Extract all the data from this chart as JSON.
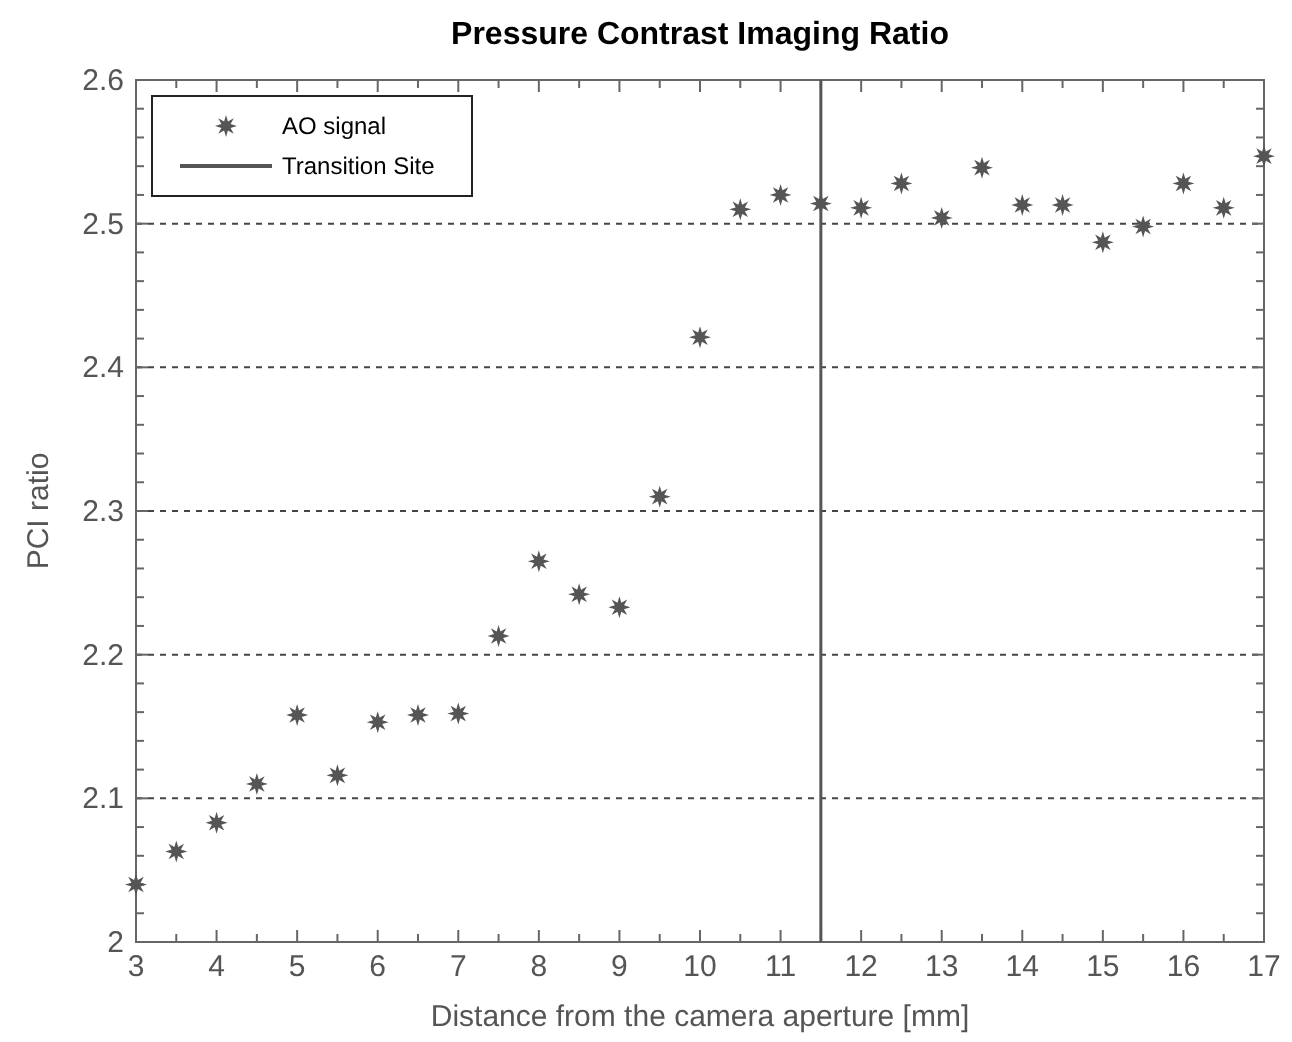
{
  "chart_data": {
    "type": "scatter",
    "title": "Pressure Contrast Imaging Ratio",
    "xlabel": "Distance from the camera aperture [mm]",
    "ylabel": "PCI ratio",
    "x": [
      3,
      3.5,
      4,
      4.5,
      5,
      5.5,
      6,
      6.5,
      7,
      7.5,
      8,
      8.5,
      9,
      9.5,
      10,
      10.5,
      11,
      11.5,
      12,
      12.5,
      13,
      13.5,
      14,
      14.5,
      15,
      15.5,
      16,
      16.5,
      17
    ],
    "series": [
      {
        "name": "AO signal",
        "color": "#555555",
        "marker": "star",
        "values": [
          2.04,
          2.063,
          2.083,
          2.11,
          2.158,
          2.116,
          2.153,
          2.158,
          2.159,
          2.213,
          2.265,
          2.242,
          2.233,
          2.31,
          2.421,
          2.51,
          2.52,
          2.514,
          2.511,
          2.528,
          2.504,
          2.539,
          2.513,
          2.513,
          2.487,
          2.498,
          2.528,
          2.511,
          2.547
        ]
      },
      {
        "type": "line",
        "name": "Transition Site",
        "color": "#555555",
        "x": [
          11.5,
          11.5
        ],
        "values": [
          2,
          2.6
        ],
        "line_style": "solid",
        "marker": "none"
      }
    ],
    "xlim": [
      3,
      17
    ],
    "xticks": [
      3,
      {
        "value": 3.5,
        "label": null
      },
      4,
      {
        "value": 4.5,
        "label": null
      },
      5,
      {
        "value": 5.5,
        "label": null
      },
      6,
      {
        "value": 6.5,
        "label": null
      },
      7,
      {
        "value": 7.5,
        "label": null
      },
      8,
      {
        "value": 8.5,
        "label": null
      },
      9,
      {
        "value": 9.5,
        "label": null
      },
      10,
      {
        "value": 10.5,
        "label": null
      },
      11,
      {
        "value": 11.5,
        "label": null
      },
      12,
      {
        "value": 12.5,
        "label": null
      },
      13,
      {
        "value": 13.5,
        "label": null
      },
      14,
      {
        "value": 14.5,
        "label": null
      },
      15,
      {
        "value": 15.5,
        "label": null
      },
      16,
      {
        "value": 16.5,
        "label": null
      },
      17
    ],
    "ylim": [
      2,
      2.6
    ],
    "yticks": [
      2,
      {
        "value": 2.02,
        "label": null
      },
      {
        "value": 2.04,
        "label": null
      },
      {
        "value": 2.06,
        "label": null
      },
      {
        "value": 2.08,
        "label": null
      },
      2.1,
      {
        "value": 2.12,
        "label": null
      },
      {
        "value": 2.14,
        "label": null
      },
      {
        "value": 2.16,
        "label": null
      },
      {
        "value": 2.18,
        "label": null
      },
      2.2,
      {
        "value": 2.22,
        "label": null
      },
      {
        "value": 2.24,
        "label": null
      },
      {
        "value": 2.26,
        "label": null
      },
      {
        "value": 2.28,
        "label": null
      },
      2.3,
      {
        "value": 2.32,
        "label": null
      },
      {
        "value": 2.34,
        "label": null
      },
      {
        "value": 2.36,
        "label": null
      },
      {
        "value": 2.38,
        "label": null
      },
      2.4,
      {
        "value": 2.42,
        "label": null
      },
      {
        "value": 2.44,
        "label": null
      },
      {
        "value": 2.46,
        "label": null
      },
      {
        "value": 2.48,
        "label": null
      },
      2.5,
      {
        "value": 2.52,
        "label": null
      },
      {
        "value": 2.54,
        "label": null
      },
      {
        "value": 2.56,
        "label": null
      },
      {
        "value": 2.58,
        "label": null
      },
      2.6
    ],
    "grid": "y",
    "legend": "top left"
  }
}
